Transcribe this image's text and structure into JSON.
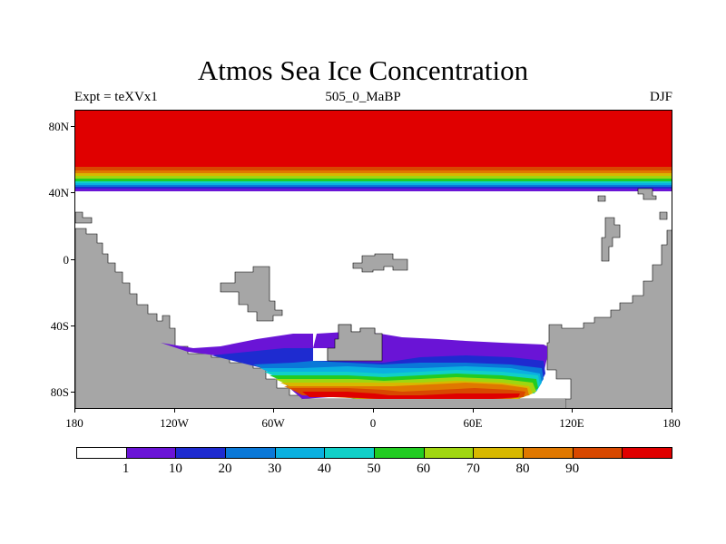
{
  "title": "Atmos Sea Ice Concentration",
  "subtitle_left": "Expt = teXVx1",
  "subtitle_center": "505_0_MaBP",
  "subtitle_right": "DJF",
  "y_ticks": [
    "80N",
    "40N",
    "0",
    "40S",
    "80S"
  ],
  "x_ticks": [
    "180",
    "120W",
    "60W",
    "0",
    "60E",
    "120E",
    "180"
  ],
  "colorbar": {
    "colors": [
      "#ffffff",
      "#6a14d6",
      "#1e2bd0",
      "#0a78d8",
      "#0ab0e0",
      "#10d0c8",
      "#22cc22",
      "#a0d610",
      "#d8b800",
      "#e07800",
      "#d84800",
      "#e00000"
    ],
    "labels": [
      "1",
      "10",
      "20",
      "30",
      "40",
      "50",
      "60",
      "70",
      "80",
      "90"
    ]
  },
  "land_color": "#a6a6a6"
}
